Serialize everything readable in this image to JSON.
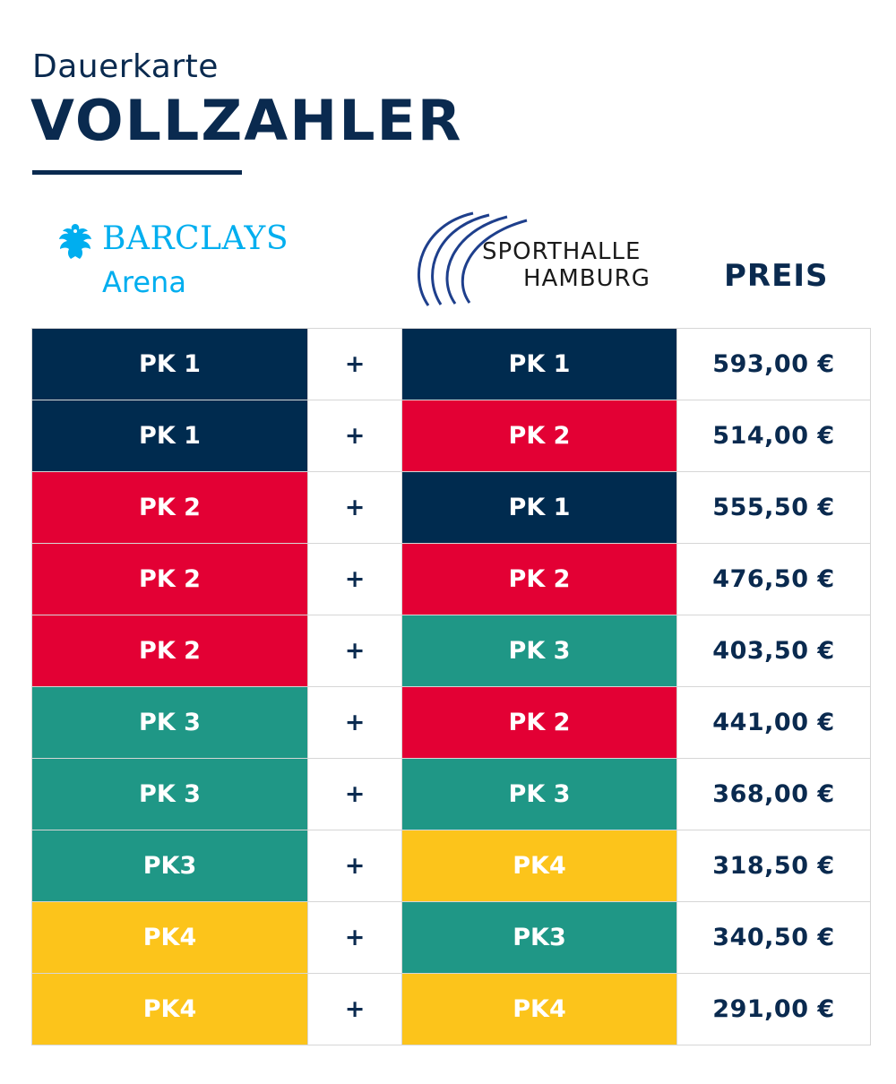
{
  "header": {
    "subtitle": "Dauerkarte",
    "title": "VOLLZAHLER"
  },
  "logos": {
    "barclays": {
      "brand": "BARCLAYS",
      "sub": "Arena",
      "icon": "eagle-icon",
      "color": "#00aeef"
    },
    "sporthalle": {
      "line1": "SPORTHALLE",
      "line2": "HAMBURG",
      "icon": "swoosh-arcs-icon",
      "color": "#1e3f8c"
    }
  },
  "columns": {
    "price_header": "PREIS"
  },
  "colors": {
    "PK1": "#002b4f",
    "PK2": "#e30034",
    "PK3": "#1f9786",
    "PK4": "#fcc41b",
    "text_dark": "#0a2a4f"
  },
  "rows": [
    {
      "arena": "PK 1",
      "arena_cat": "PK1",
      "plus": "+",
      "halle": "PK 1",
      "halle_cat": "PK1",
      "price": "593,00 €"
    },
    {
      "arena": "PK 1",
      "arena_cat": "PK1",
      "plus": "+",
      "halle": "PK 2",
      "halle_cat": "PK2",
      "price": "514,00 €"
    },
    {
      "arena": "PK 2",
      "arena_cat": "PK2",
      "plus": "+",
      "halle": "PK 1",
      "halle_cat": "PK1",
      "price": "555,50 €"
    },
    {
      "arena": "PK 2",
      "arena_cat": "PK2",
      "plus": "+",
      "halle": "PK 2",
      "halle_cat": "PK2",
      "price": "476,50 €"
    },
    {
      "arena": "PK 2",
      "arena_cat": "PK2",
      "plus": "+",
      "halle": "PK 3",
      "halle_cat": "PK3",
      "price": "403,50 €"
    },
    {
      "arena": "PK 3",
      "arena_cat": "PK3",
      "plus": "+",
      "halle": "PK 2",
      "halle_cat": "PK2",
      "price": "441,00 €"
    },
    {
      "arena": "PK 3",
      "arena_cat": "PK3",
      "plus": "+",
      "halle": "PK 3",
      "halle_cat": "PK3",
      "price": "368,00 €"
    },
    {
      "arena": "PK3",
      "arena_cat": "PK3",
      "plus": "+",
      "halle": "PK4",
      "halle_cat": "PK4",
      "price": "318,50 €"
    },
    {
      "arena": "PK4",
      "arena_cat": "PK4",
      "plus": "+",
      "halle": "PK3",
      "halle_cat": "PK3",
      "price": "340,50 €"
    },
    {
      "arena": "PK4",
      "arena_cat": "PK4",
      "plus": "+",
      "halle": "PK4",
      "halle_cat": "PK4",
      "price": "291,00 €"
    }
  ]
}
